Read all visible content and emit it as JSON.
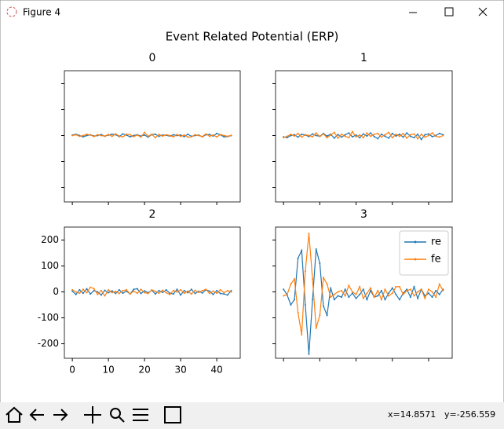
{
  "window_title": "Figure 4",
  "coords_x": "x=14.8571",
  "coords_y": "y=-256.559",
  "figure_title": "Event Related Potential (ERP)",
  "chart_data": [
    {
      "type": "line",
      "title": "0",
      "xlim": [
        -2.2,
        46.5
      ],
      "ylim": [
        -256,
        250
      ],
      "xticks": [
        0,
        10,
        20,
        30,
        40
      ],
      "yticks": [
        -200,
        -100,
        0,
        100,
        200
      ],
      "show_xtick_labels": false,
      "show_ytick_labels": false,
      "x": [
        0,
        1,
        2,
        3,
        4,
        5,
        6,
        7,
        8,
        9,
        10,
        11,
        12,
        13,
        14,
        15,
        16,
        17,
        18,
        19,
        20,
        21,
        22,
        23,
        24,
        25,
        26,
        27,
        28,
        29,
        30,
        31,
        32,
        33,
        34,
        35,
        36,
        37,
        38,
        39,
        40,
        41,
        42,
        43,
        44
      ],
      "series": [
        {
          "name": "re",
          "color": "#1f77b4",
          "values": [
            2,
            5,
            0,
            -5,
            0,
            3,
            -2,
            0,
            4,
            -3,
            2,
            5,
            3,
            -4,
            6,
            2,
            -5,
            0,
            3,
            -2,
            2,
            -6,
            4,
            5,
            -3,
            2,
            1,
            -2,
            3,
            0,
            2,
            -4,
            5,
            -3,
            0,
            2,
            -5,
            3,
            4,
            -2,
            8,
            3,
            -5,
            -4,
            0
          ]
        },
        {
          "name": "fe",
          "color": "#ff7f0e",
          "values": [
            0,
            3,
            -3,
            0,
            5,
            2,
            -4,
            3,
            0,
            -2,
            4,
            -3,
            6,
            -2,
            -5,
            5,
            3,
            -4,
            2,
            -6,
            12,
            -3,
            5,
            -8,
            4,
            -2,
            3,
            0,
            -5,
            4,
            -3,
            2,
            -6,
            -5,
            3,
            0,
            -4,
            6,
            -3,
            2,
            -5,
            4,
            0,
            -3,
            1
          ]
        }
      ]
    },
    {
      "type": "line",
      "title": "1",
      "xlim": [
        -2.2,
        46.5
      ],
      "ylim": [
        -256,
        250
      ],
      "xticks": [
        0,
        10,
        20,
        30,
        40
      ],
      "yticks": [
        -200,
        -100,
        0,
        100,
        200
      ],
      "show_xtick_labels": false,
      "show_ytick_labels": false,
      "x": [
        0,
        1,
        2,
        3,
        4,
        5,
        6,
        7,
        8,
        9,
        10,
        11,
        12,
        13,
        14,
        15,
        16,
        17,
        18,
        19,
        20,
        21,
        22,
        23,
        24,
        25,
        26,
        27,
        28,
        29,
        30,
        31,
        32,
        33,
        34,
        35,
        36,
        37,
        38,
        39,
        40,
        41,
        42,
        43,
        44
      ],
      "series": [
        {
          "name": "re",
          "color": "#1f77b4",
          "values": [
            -5,
            -8,
            0,
            3,
            -6,
            5,
            2,
            -4,
            6,
            0,
            -3,
            8,
            -2,
            5,
            -10,
            4,
            -6,
            3,
            10,
            -5,
            2,
            -8,
            6,
            -2,
            10,
            -4,
            -12,
            5,
            -3,
            -10,
            8,
            -2,
            5,
            -6,
            10,
            -3,
            -8,
            5,
            -15,
            3,
            6,
            -4,
            0,
            8,
            3
          ]
        },
        {
          "name": "fe",
          "color": "#ff7f0e",
          "values": [
            -8,
            -3,
            5,
            -2,
            8,
            -6,
            3,
            0,
            -5,
            10,
            -4,
            6,
            -8,
            2,
            12,
            -10,
            5,
            -3,
            -8,
            15,
            -5,
            2,
            -8,
            10,
            -3,
            5,
            8,
            -6,
            3,
            12,
            -8,
            5,
            -3,
            8,
            -10,
            3,
            6,
            -12,
            5,
            -6,
            0,
            10,
            -3,
            -6,
            0
          ]
        }
      ]
    },
    {
      "type": "line",
      "title": "2",
      "xlim": [
        -2.2,
        46.5
      ],
      "ylim": [
        -256,
        250
      ],
      "xticks": [
        0,
        10,
        20,
        30,
        40
      ],
      "yticks": [
        -200,
        -100,
        0,
        100,
        200
      ],
      "show_xtick_labels": true,
      "show_ytick_labels": true,
      "x": [
        0,
        1,
        2,
        3,
        4,
        5,
        6,
        7,
        8,
        9,
        10,
        11,
        12,
        13,
        14,
        15,
        16,
        17,
        18,
        19,
        20,
        21,
        22,
        23,
        24,
        25,
        26,
        27,
        28,
        29,
        30,
        31,
        32,
        33,
        34,
        35,
        36,
        37,
        38,
        39,
        40,
        41,
        42,
        43,
        44
      ],
      "series": [
        {
          "name": "re",
          "color": "#1f77b4",
          "values": [
            3,
            -10,
            8,
            -5,
            12,
            -8,
            5,
            0,
            -12,
            6,
            -3,
            4,
            -6,
            8,
            -5,
            3,
            -8,
            10,
            12,
            -6,
            4,
            -3,
            6,
            -8,
            5,
            -2,
            8,
            -5,
            -8,
            10,
            -12,
            5,
            -3,
            10,
            -6,
            2,
            -4,
            8,
            3,
            -10,
            5,
            -6,
            -8,
            -12,
            5
          ]
        },
        {
          "name": "fe",
          "color": "#ff7f0e",
          "values": [
            8,
            0,
            -5,
            10,
            -3,
            18,
            12,
            -10,
            5,
            -15,
            8,
            -3,
            2,
            -6,
            5,
            8,
            -8,
            3,
            -5,
            10,
            -3,
            -6,
            8,
            2,
            -5,
            6,
            -3,
            -10,
            5,
            0,
            8,
            -5,
            3,
            -8,
            6,
            -2,
            5,
            10,
            -6,
            3,
            -5,
            8,
            -3,
            5,
            0
          ]
        }
      ]
    },
    {
      "type": "line",
      "title": "3",
      "xlim": [
        -2.2,
        46.5
      ],
      "ylim": [
        -256,
        250
      ],
      "xticks": [
        0,
        10,
        20,
        30,
        40
      ],
      "yticks": [
        -200,
        -100,
        0,
        100,
        200
      ],
      "show_xtick_labels": false,
      "show_ytick_labels": false,
      "legend": "upper right",
      "x": [
        0,
        1,
        2,
        3,
        4,
        5,
        6,
        7,
        8,
        9,
        10,
        11,
        12,
        13,
        14,
        15,
        16,
        17,
        18,
        19,
        20,
        21,
        22,
        23,
        24,
        25,
        26,
        27,
        28,
        29,
        30,
        31,
        32,
        33,
        34,
        35,
        36,
        37,
        38,
        39,
        40,
        41,
        42,
        43,
        44
      ],
      "series": [
        {
          "name": "re",
          "color": "#1f77b4",
          "values": [
            10,
            -12,
            -50,
            -30,
            130,
            160,
            -50,
            -240,
            -30,
            165,
            110,
            -55,
            -90,
            15,
            -30,
            -15,
            -20,
            10,
            -20,
            -5,
            -25,
            -10,
            10,
            -30,
            5,
            -20,
            -15,
            5,
            -30,
            -5,
            15,
            -10,
            -30,
            -5,
            10,
            -20,
            20,
            -25,
            10,
            -15,
            -5,
            -20,
            5,
            -10,
            10
          ]
        },
        {
          "name": "fe",
          "color": "#ff7f0e",
          "values": [
            -15,
            -10,
            30,
            50,
            -80,
            -165,
            80,
            225,
            50,
            -140,
            -90,
            55,
            30,
            -20,
            -10,
            0,
            5,
            -15,
            25,
            0,
            -10,
            20,
            -25,
            -5,
            15,
            -20,
            5,
            -30,
            10,
            -15,
            -5,
            20,
            20,
            -10,
            5,
            10,
            -15,
            0,
            10,
            -25,
            10,
            0,
            -20,
            30,
            5
          ]
        }
      ]
    }
  ]
}
